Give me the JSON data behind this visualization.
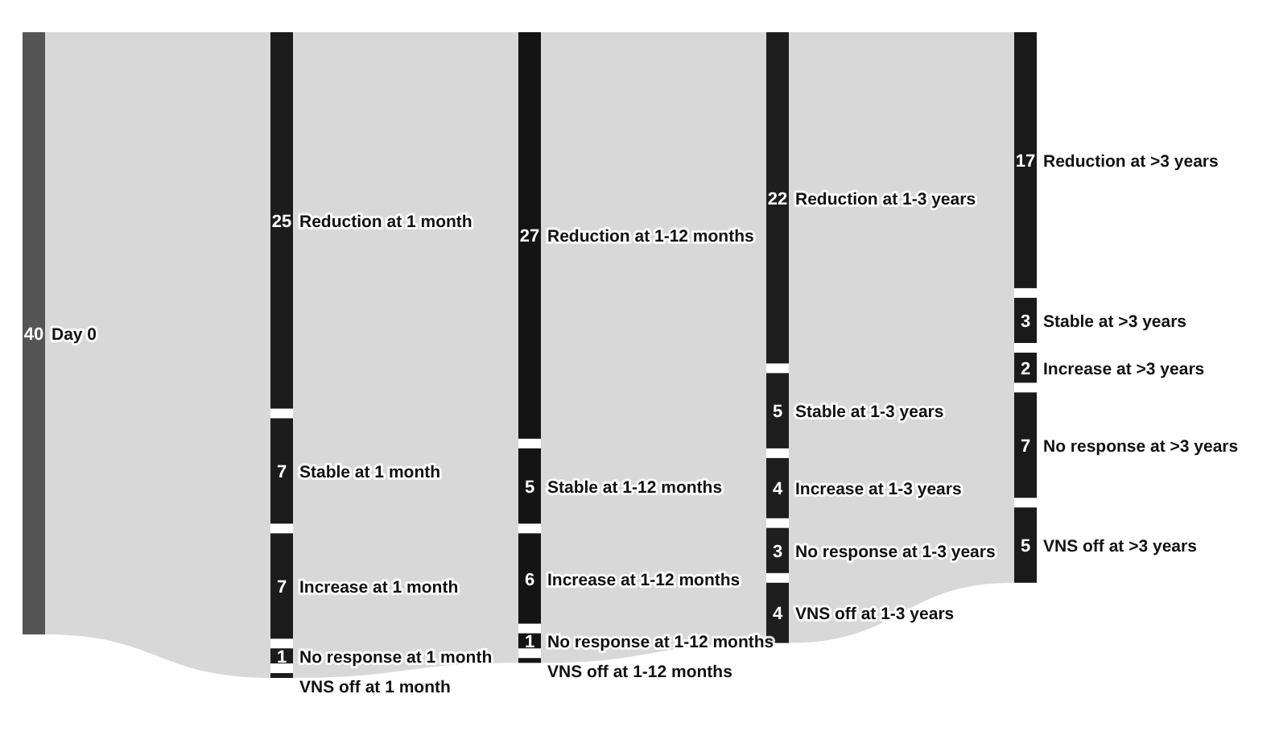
{
  "chart_data": {
    "type": "other",
    "data_labels": true,
    "categories": [
      "Day 0",
      "Reduction at 1 month",
      "Stable at 1 month",
      "Increase at 1 month",
      "No response at 1 month",
      "VNS off at 1 month",
      "Reduction at 1-12 months",
      "Stable at 1-12 months",
      "Increase at 1-12 months",
      "No response at 1-12 months",
      "VNS off at 1-12 months",
      "Reduction at 1-3 years",
      "Stable at 1-3 years",
      "Increase at 1-3 years",
      "No response at 1-3 years",
      "VNS off at 1-3 years",
      "Reduction at >3 years",
      "Stable at >3 years",
      "Increase at >3 years",
      "No response at >3 years",
      "VNS off at >3 years"
    ],
    "series": [
      {
        "color": "#555555",
        "values": [
          40,
          null,
          null,
          null,
          null,
          null,
          null,
          null,
          null,
          null,
          null,
          null,
          null,
          null,
          null,
          null,
          null,
          null,
          null,
          null,
          null
        ]
      },
      {
        "color": "#1c1c1c",
        "values": [
          null,
          25,
          7,
          7,
          1,
          null,
          null,
          null,
          null,
          null,
          null,
          null,
          null,
          null,
          null,
          null,
          null,
          null,
          null,
          null,
          null
        ]
      },
      {
        "color": "#141414",
        "values": [
          null,
          null,
          null,
          null,
          null,
          null,
          27,
          5,
          6,
          1,
          null,
          null,
          null,
          null,
          null,
          null,
          null,
          null,
          null,
          null,
          null
        ]
      },
      {
        "color": "#1e1e1e",
        "values": [
          null,
          null,
          null,
          null,
          null,
          null,
          null,
          null,
          null,
          null,
          null,
          22,
          5,
          4,
          3,
          4,
          null,
          null,
          null,
          null,
          null
        ]
      },
      {
        "color": "#1a1a1a",
        "values": [
          null,
          null,
          null,
          null,
          null,
          null,
          null,
          null,
          null,
          null,
          null,
          null,
          null,
          null,
          null,
          null,
          17,
          3,
          2,
          7,
          5
        ]
      }
    ]
  }
}
